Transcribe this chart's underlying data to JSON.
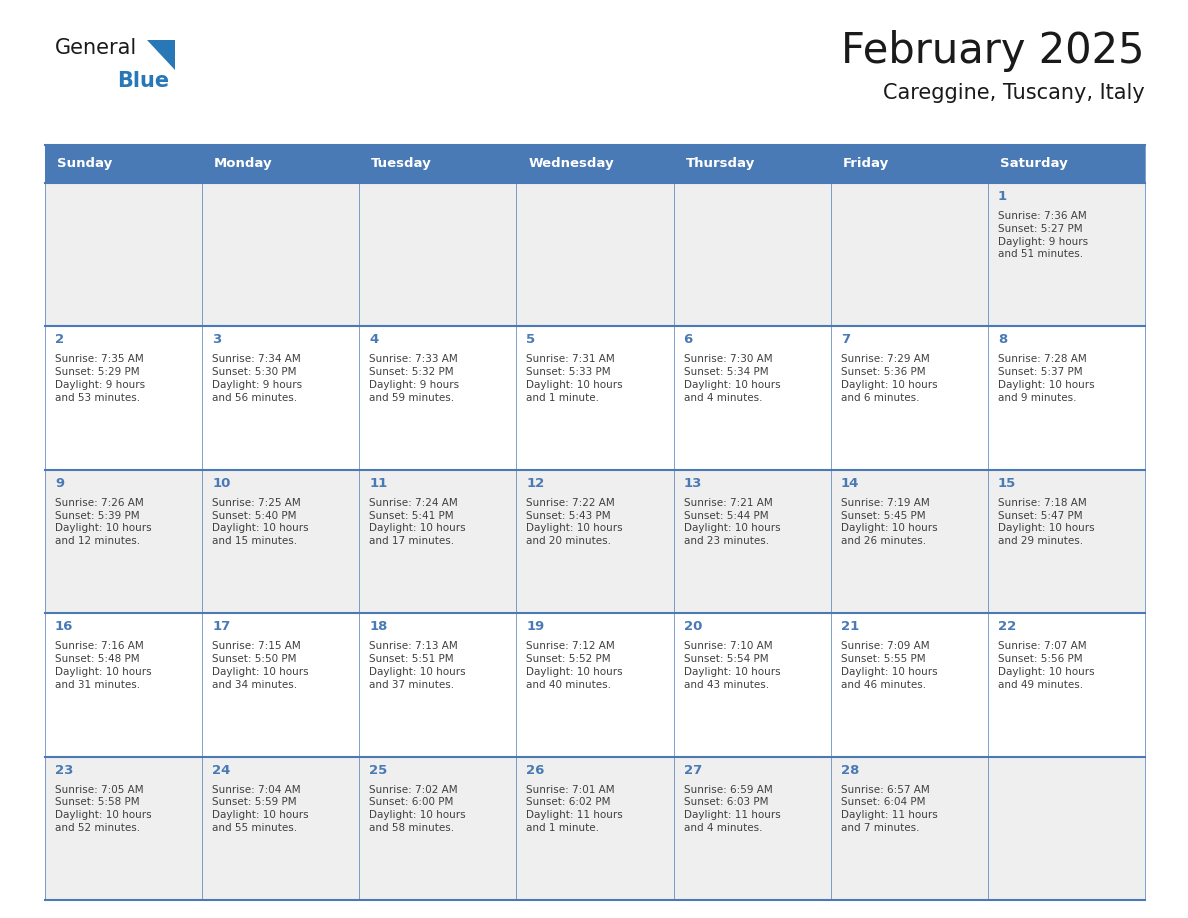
{
  "title": "February 2025",
  "subtitle": "Careggine, Tuscany, Italy",
  "days_of_week": [
    "Sunday",
    "Monday",
    "Tuesday",
    "Wednesday",
    "Thursday",
    "Friday",
    "Saturday"
  ],
  "header_bg_color": "#4a7ab5",
  "header_text_color": "#ffffff",
  "cell_bg_white": "#ffffff",
  "cell_bg_gray": "#f0f0f0",
  "day_num_color": "#4a7ab5",
  "text_color": "#404040",
  "line_color": "#4a7ab5",
  "title_color": "#1a1a1a",
  "logo_black": "#1a1a1a",
  "logo_blue": "#2878b8",
  "calendar": [
    [
      {
        "day": null,
        "info": ""
      },
      {
        "day": null,
        "info": ""
      },
      {
        "day": null,
        "info": ""
      },
      {
        "day": null,
        "info": ""
      },
      {
        "day": null,
        "info": ""
      },
      {
        "day": null,
        "info": ""
      },
      {
        "day": 1,
        "info": "Sunrise: 7:36 AM\nSunset: 5:27 PM\nDaylight: 9 hours\nand 51 minutes."
      }
    ],
    [
      {
        "day": 2,
        "info": "Sunrise: 7:35 AM\nSunset: 5:29 PM\nDaylight: 9 hours\nand 53 minutes."
      },
      {
        "day": 3,
        "info": "Sunrise: 7:34 AM\nSunset: 5:30 PM\nDaylight: 9 hours\nand 56 minutes."
      },
      {
        "day": 4,
        "info": "Sunrise: 7:33 AM\nSunset: 5:32 PM\nDaylight: 9 hours\nand 59 minutes."
      },
      {
        "day": 5,
        "info": "Sunrise: 7:31 AM\nSunset: 5:33 PM\nDaylight: 10 hours\nand 1 minute."
      },
      {
        "day": 6,
        "info": "Sunrise: 7:30 AM\nSunset: 5:34 PM\nDaylight: 10 hours\nand 4 minutes."
      },
      {
        "day": 7,
        "info": "Sunrise: 7:29 AM\nSunset: 5:36 PM\nDaylight: 10 hours\nand 6 minutes."
      },
      {
        "day": 8,
        "info": "Sunrise: 7:28 AM\nSunset: 5:37 PM\nDaylight: 10 hours\nand 9 minutes."
      }
    ],
    [
      {
        "day": 9,
        "info": "Sunrise: 7:26 AM\nSunset: 5:39 PM\nDaylight: 10 hours\nand 12 minutes."
      },
      {
        "day": 10,
        "info": "Sunrise: 7:25 AM\nSunset: 5:40 PM\nDaylight: 10 hours\nand 15 minutes."
      },
      {
        "day": 11,
        "info": "Sunrise: 7:24 AM\nSunset: 5:41 PM\nDaylight: 10 hours\nand 17 minutes."
      },
      {
        "day": 12,
        "info": "Sunrise: 7:22 AM\nSunset: 5:43 PM\nDaylight: 10 hours\nand 20 minutes."
      },
      {
        "day": 13,
        "info": "Sunrise: 7:21 AM\nSunset: 5:44 PM\nDaylight: 10 hours\nand 23 minutes."
      },
      {
        "day": 14,
        "info": "Sunrise: 7:19 AM\nSunset: 5:45 PM\nDaylight: 10 hours\nand 26 minutes."
      },
      {
        "day": 15,
        "info": "Sunrise: 7:18 AM\nSunset: 5:47 PM\nDaylight: 10 hours\nand 29 minutes."
      }
    ],
    [
      {
        "day": 16,
        "info": "Sunrise: 7:16 AM\nSunset: 5:48 PM\nDaylight: 10 hours\nand 31 minutes."
      },
      {
        "day": 17,
        "info": "Sunrise: 7:15 AM\nSunset: 5:50 PM\nDaylight: 10 hours\nand 34 minutes."
      },
      {
        "day": 18,
        "info": "Sunrise: 7:13 AM\nSunset: 5:51 PM\nDaylight: 10 hours\nand 37 minutes."
      },
      {
        "day": 19,
        "info": "Sunrise: 7:12 AM\nSunset: 5:52 PM\nDaylight: 10 hours\nand 40 minutes."
      },
      {
        "day": 20,
        "info": "Sunrise: 7:10 AM\nSunset: 5:54 PM\nDaylight: 10 hours\nand 43 minutes."
      },
      {
        "day": 21,
        "info": "Sunrise: 7:09 AM\nSunset: 5:55 PM\nDaylight: 10 hours\nand 46 minutes."
      },
      {
        "day": 22,
        "info": "Sunrise: 7:07 AM\nSunset: 5:56 PM\nDaylight: 10 hours\nand 49 minutes."
      }
    ],
    [
      {
        "day": 23,
        "info": "Sunrise: 7:05 AM\nSunset: 5:58 PM\nDaylight: 10 hours\nand 52 minutes."
      },
      {
        "day": 24,
        "info": "Sunrise: 7:04 AM\nSunset: 5:59 PM\nDaylight: 10 hours\nand 55 minutes."
      },
      {
        "day": 25,
        "info": "Sunrise: 7:02 AM\nSunset: 6:00 PM\nDaylight: 10 hours\nand 58 minutes."
      },
      {
        "day": 26,
        "info": "Sunrise: 7:01 AM\nSunset: 6:02 PM\nDaylight: 11 hours\nand 1 minute."
      },
      {
        "day": 27,
        "info": "Sunrise: 6:59 AM\nSunset: 6:03 PM\nDaylight: 11 hours\nand 4 minutes."
      },
      {
        "day": 28,
        "info": "Sunrise: 6:57 AM\nSunset: 6:04 PM\nDaylight: 11 hours\nand 7 minutes."
      },
      {
        "day": null,
        "info": ""
      }
    ]
  ],
  "row_bg_colors": [
    "#efefef",
    "#ffffff",
    "#efefef",
    "#ffffff",
    "#efefef"
  ]
}
